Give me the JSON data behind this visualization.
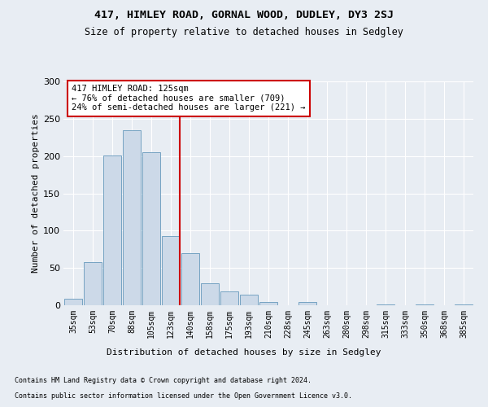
{
  "title1": "417, HIMLEY ROAD, GORNAL WOOD, DUDLEY, DY3 2SJ",
  "title2": "Size of property relative to detached houses in Sedgley",
  "xlabel": "Distribution of detached houses by size in Sedgley",
  "ylabel": "Number of detached properties",
  "bar_color": "#ccd9e8",
  "bar_edge_color": "#6699bb",
  "categories": [
    "35sqm",
    "53sqm",
    "70sqm",
    "88sqm",
    "105sqm",
    "123sqm",
    "140sqm",
    "158sqm",
    "175sqm",
    "193sqm",
    "210sqm",
    "228sqm",
    "245sqm",
    "263sqm",
    "280sqm",
    "298sqm",
    "315sqm",
    "333sqm",
    "350sqm",
    "368sqm",
    "385sqm"
  ],
  "values": [
    9,
    58,
    201,
    235,
    205,
    93,
    70,
    29,
    19,
    14,
    4,
    0,
    4,
    0,
    0,
    0,
    1,
    0,
    1,
    0,
    1
  ],
  "vline_index": 5,
  "vline_color": "#cc0000",
  "annotation_text": "417 HIMLEY ROAD: 125sqm\n← 76% of detached houses are smaller (709)\n24% of semi-detached houses are larger (221) →",
  "annotation_box_facecolor": "#ffffff",
  "annotation_box_edgecolor": "#cc0000",
  "ylim": [
    0,
    300
  ],
  "yticks": [
    0,
    50,
    100,
    150,
    200,
    250,
    300
  ],
  "footer1": "Contains HM Land Registry data © Crown copyright and database right 2024.",
  "footer2": "Contains public sector information licensed under the Open Government Licence v3.0.",
  "fig_facecolor": "#e8edf3",
  "plot_facecolor": "#e8edf3",
  "grid_color": "#ffffff"
}
